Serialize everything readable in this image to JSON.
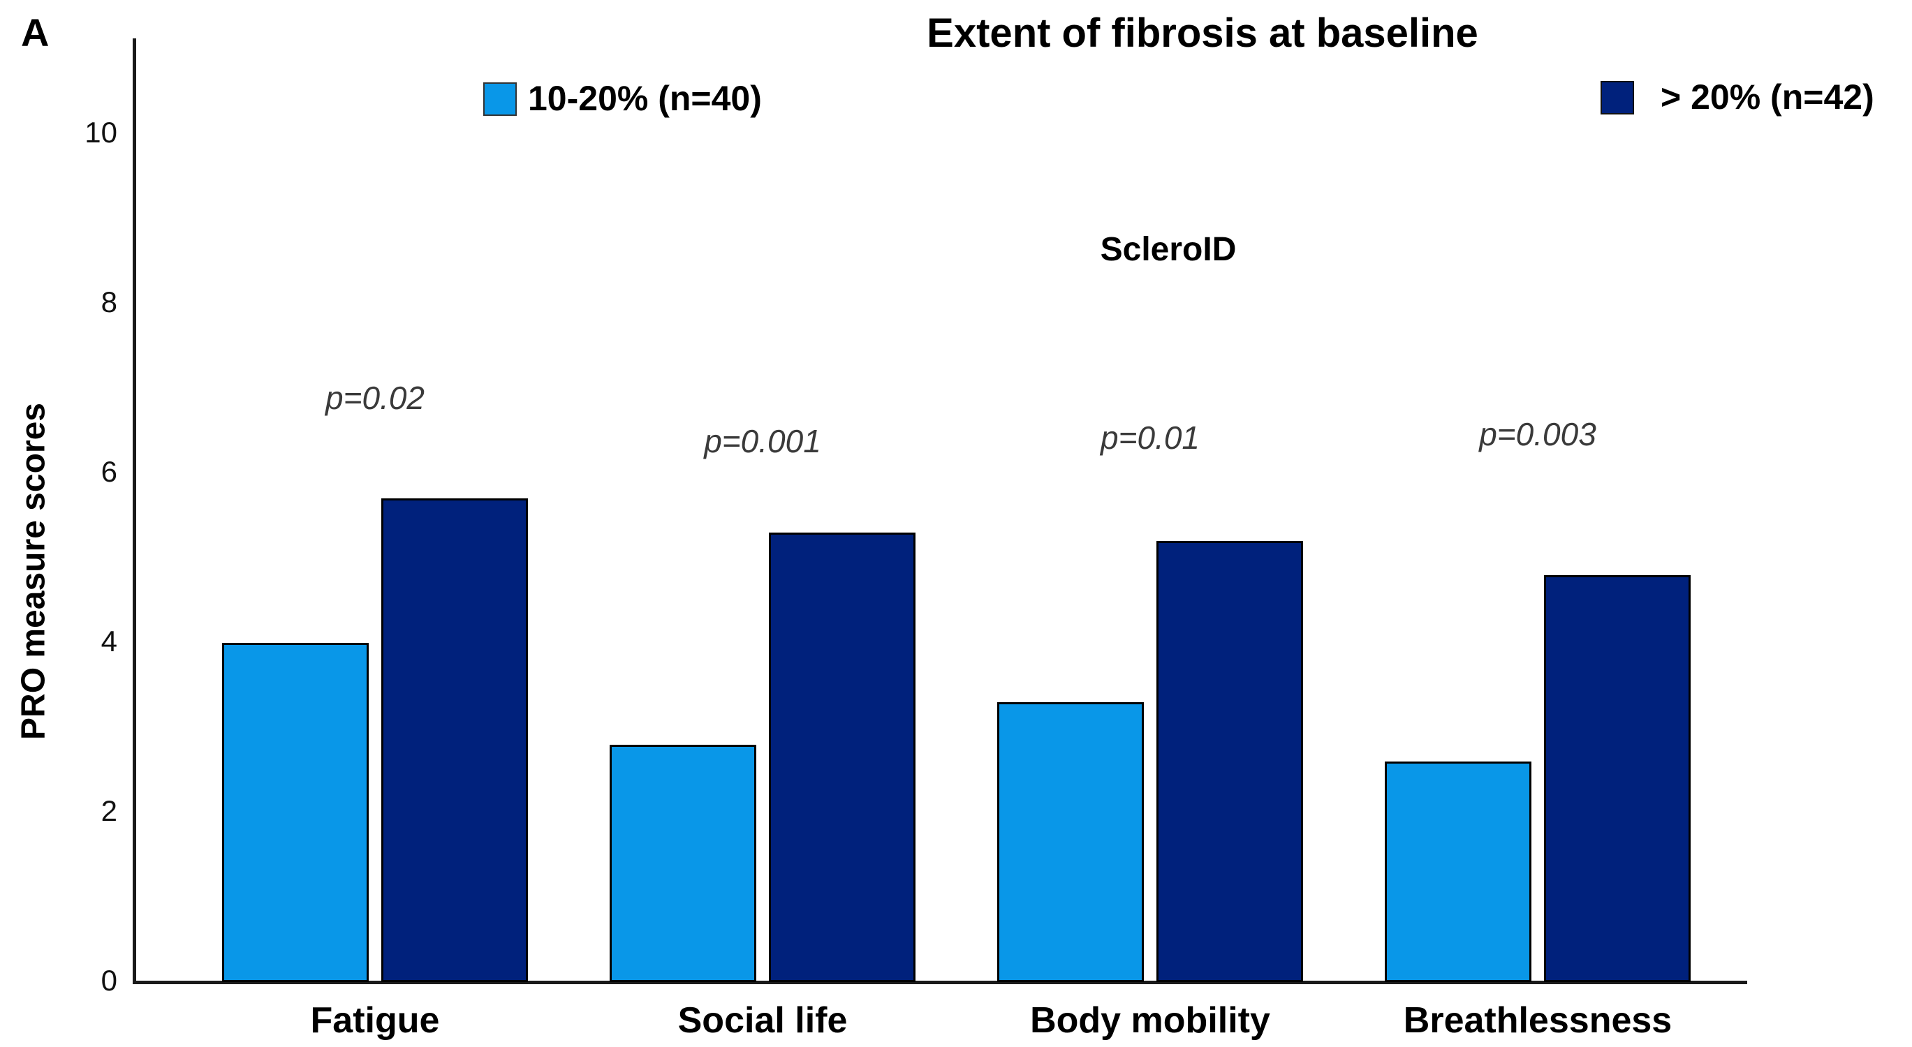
{
  "panel_label": "A",
  "title": "Extent of fibrosis at baseline",
  "annotation": "ScleroID",
  "ylabel": "PRO measure scores",
  "legend": [
    {
      "label": "10-20% (n=40)",
      "color": "#0997E8"
    },
    {
      "label": "> 20% (n=42)",
      "color": "#00217C"
    }
  ],
  "chart_data": {
    "type": "bar",
    "title": "Extent of fibrosis at baseline",
    "categories": [
      "Fatigue",
      "Social life",
      "Body mobility",
      "Breathlessness"
    ],
    "series": [
      {
        "name": "10-20% (n=40)",
        "color": "#0997E8",
        "values": [
          4.0,
          2.8,
          3.3,
          2.6
        ]
      },
      {
        "name": "> 20% (n=42)",
        "color": "#00217C",
        "values": [
          5.7,
          5.3,
          5.2,
          4.8
        ]
      }
    ],
    "p_values": [
      "p=0.02",
      "p=0.001",
      "p=0.01",
      "p=0.003"
    ],
    "annotations": [
      "ScleroID"
    ],
    "xlabel": "",
    "ylabel": "PRO measure scores",
    "ylim": [
      0,
      10
    ],
    "yticks": [
      0,
      2,
      4,
      6,
      8,
      10
    ],
    "legend_position": "top",
    "grid": false,
    "bar_border_color": "#000000"
  }
}
